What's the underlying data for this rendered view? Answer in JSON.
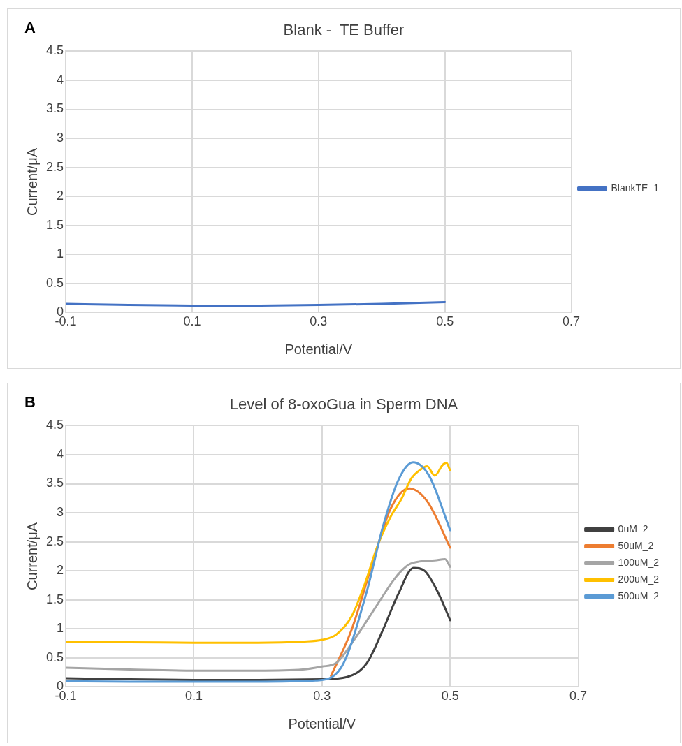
{
  "chart_data": [
    {
      "type": "line",
      "title": "Blank -  TE Buffer",
      "xlabel": "Potential/V",
      "ylabel": "Current/μA",
      "annotations": [
        "A"
      ],
      "xlim": [
        -0.1,
        0.7
      ],
      "xticks": [
        -0.1,
        0.1,
        0.3,
        0.5,
        0.7
      ],
      "ylim": [
        0,
        4.5
      ],
      "yticks": [
        0,
        0.5,
        1,
        1.5,
        2,
        2.5,
        3,
        3.5,
        4,
        4.5
      ],
      "grid": true,
      "legend": "right",
      "marker": "none",
      "series": [
        {
          "name": "BlankTE_1",
          "color": "#4472c4",
          "x": [
            -0.1,
            0,
            0.1,
            0.2,
            0.3,
            0.4,
            0.5
          ],
          "values": [
            0.15,
            0.13,
            0.12,
            0.12,
            0.13,
            0.15,
            0.18
          ]
        }
      ]
    },
    {
      "type": "line",
      "title": "Level of 8-oxoGua in Sperm DNA",
      "xlabel": "Potential/V",
      "ylabel": "Current/μA",
      "annotations": [
        "B"
      ],
      "xlim": [
        -0.1,
        0.7
      ],
      "xticks": [
        -0.1,
        0.1,
        0.3,
        0.5,
        0.7
      ],
      "ylim": [
        0,
        4.5
      ],
      "yticks": [
        0,
        0.5,
        1,
        1.5,
        2,
        2.5,
        3,
        3.5,
        4,
        4.5
      ],
      "grid": true,
      "legend": "right",
      "marker": "none",
      "series": [
        {
          "name": "0uM_2",
          "color": "#404040",
          "x": [
            -0.1,
            0,
            0.1,
            0.2,
            0.3,
            0.339,
            0.37,
            0.395,
            0.419,
            0.443,
            0.46,
            0.48,
            0.5
          ],
          "values": [
            0.15,
            0.13,
            0.12,
            0.12,
            0.13,
            0.17,
            0.41,
            0.98,
            1.6,
            2.05,
            2.0,
            1.65,
            1.15
          ]
        },
        {
          "name": "50uM_2",
          "color": "#ed7d31",
          "x": [
            0.314,
            0.346,
            0.379,
            0.407,
            0.436,
            0.464,
            0.5
          ],
          "values": [
            0.19,
            0.98,
            2.14,
            3.07,
            3.42,
            3.2,
            2.4
          ]
        },
        {
          "name": "100uM_2",
          "color": "#a5a5a5",
          "x": [
            -0.1,
            0,
            0.1,
            0.2,
            0.27,
            0.3,
            0.322,
            0.35,
            0.387,
            0.411,
            0.424,
            0.436,
            0.452,
            0.476,
            0.492,
            0.5
          ],
          "values": [
            0.33,
            0.3,
            0.28,
            0.28,
            0.3,
            0.35,
            0.41,
            0.81,
            1.43,
            1.83,
            2.0,
            2.11,
            2.16,
            2.18,
            2.2,
            2.07
          ]
        },
        {
          "name": "200uM_2",
          "color": "#ffc000",
          "x": [
            -0.1,
            0,
            0.1,
            0.2,
            0.27,
            0.3,
            0.322,
            0.346,
            0.367,
            0.387,
            0.407,
            0.424,
            0.44,
            0.452,
            0.464,
            0.476,
            0.488,
            0.494,
            0.5
          ],
          "values": [
            0.77,
            0.77,
            0.76,
            0.76,
            0.78,
            0.81,
            0.9,
            1.21,
            1.78,
            2.44,
            2.93,
            3.24,
            3.6,
            3.73,
            3.8,
            3.64,
            3.82,
            3.86,
            3.73
          ]
        },
        {
          "name": "500uM_2",
          "color": "#5b9bd5",
          "x": [
            -0.1,
            0,
            0.1,
            0.2,
            0.29,
            0.329,
            0.37,
            0.395,
            0.419,
            0.442,
            0.467,
            0.5
          ],
          "values": [
            0.1,
            0.09,
            0.09,
            0.09,
            0.11,
            0.32,
            1.65,
            2.76,
            3.56,
            3.87,
            3.64,
            2.7
          ]
        }
      ]
    }
  ]
}
